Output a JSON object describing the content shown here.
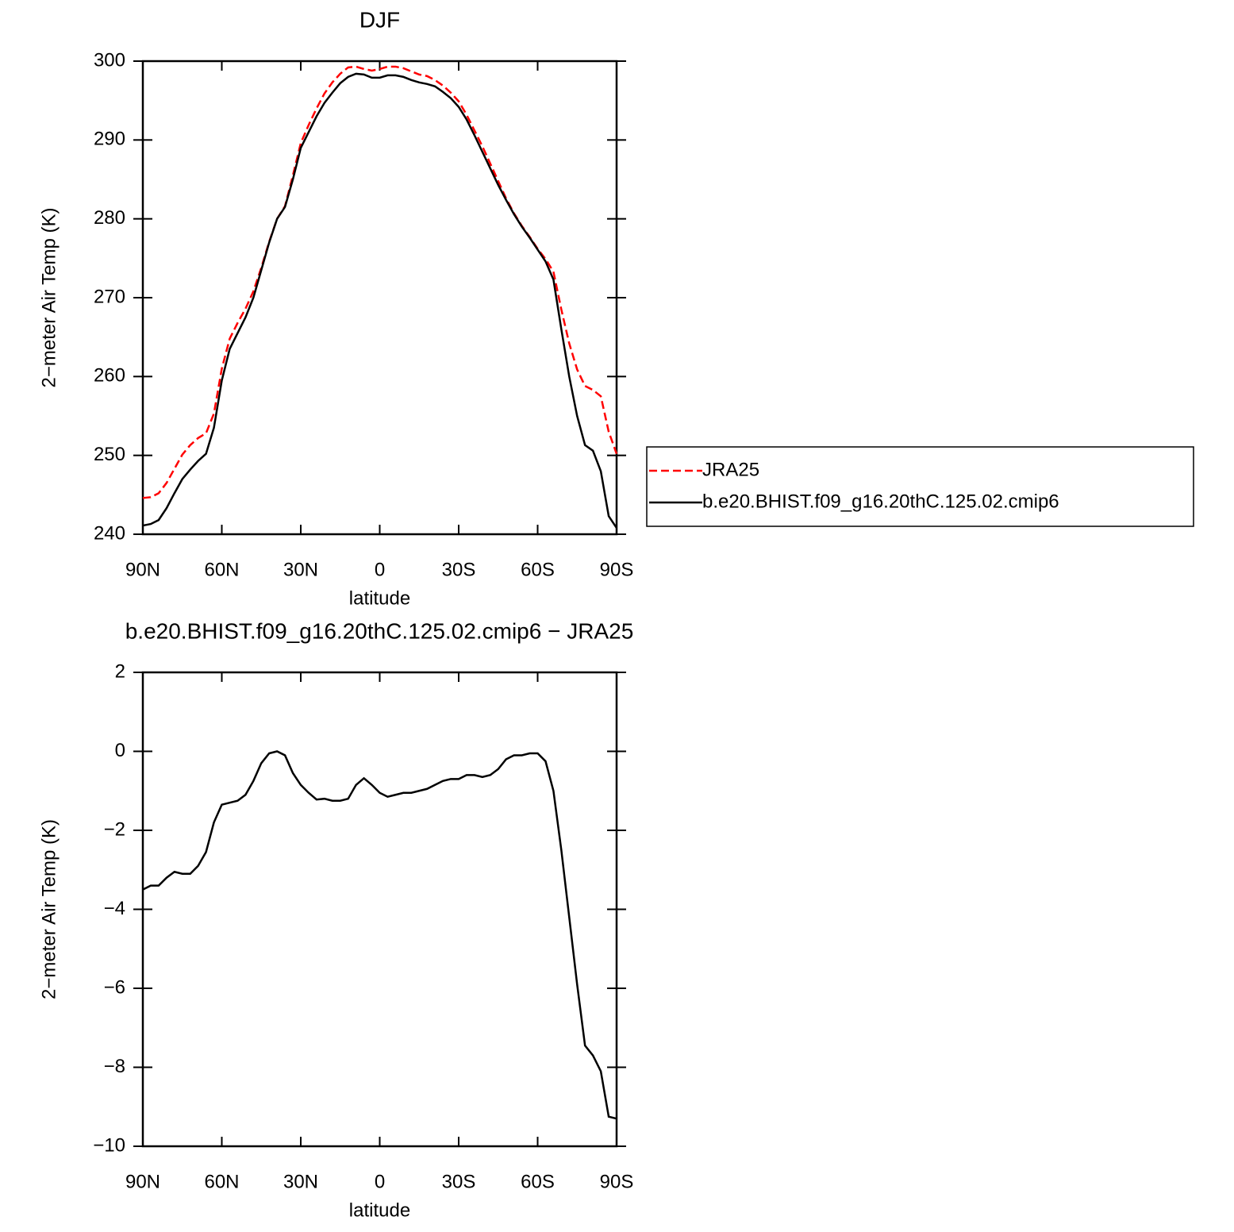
{
  "chart_data": [
    {
      "type": "line",
      "title": "DJF",
      "xlabel": "latitude",
      "ylabel": "2−meter Air Temp (K)",
      "x": [
        90,
        87,
        84,
        81,
        78,
        75,
        72,
        69,
        66,
        63,
        60,
        57,
        54,
        51,
        48,
        45,
        42,
        39,
        36,
        33,
        30,
        27,
        24,
        21,
        18,
        15,
        12,
        9,
        6,
        3,
        0,
        -3,
        -6,
        -9,
        -12,
        -15,
        -18,
        -21,
        -24,
        -27,
        -30,
        -33,
        -36,
        -39,
        -42,
        -45,
        -48,
        -51,
        -54,
        -57,
        -60,
        -63,
        -66,
        -69,
        -72,
        -75,
        -78,
        -81,
        -84,
        -87,
        -90
      ],
      "series": [
        {
          "name": "JRA25",
          "color": "#ff0000",
          "line_style": "dashed",
          "values": [
            244.6,
            244.7,
            245.2,
            246.5,
            248.3,
            250.1,
            251.3,
            252.2,
            252.8,
            255.3,
            261.0,
            264.8,
            266.8,
            268.6,
            270.8,
            273.8,
            277.1,
            280.0,
            281.6,
            285.5,
            289.6,
            291.9,
            294.0,
            295.9,
            297.3,
            298.4,
            299.2,
            299.3,
            299.0,
            298.8,
            299.0,
            299.3,
            299.3,
            299.1,
            298.7,
            298.3,
            298.1,
            297.6,
            296.9,
            296.0,
            294.9,
            293.2,
            291.2,
            289.2,
            287.0,
            284.8,
            282.6,
            280.7,
            279.1,
            277.7,
            276.2,
            274.9,
            273.3,
            268.5,
            264.2,
            260.9,
            258.8,
            258.3,
            257.5,
            253.0,
            250.2
          ]
        },
        {
          "name": "b.e20.BHIST.f09_g16.20thC.125.02.cmip6",
          "color": "#000000",
          "line_style": "solid",
          "values": [
            241.1,
            241.3,
            241.8,
            243.3,
            245.2,
            247.0,
            248.2,
            249.3,
            250.2,
            253.5,
            259.5,
            263.5,
            265.5,
            267.5,
            270.0,
            273.5,
            277.0,
            280.0,
            281.5,
            285.0,
            289.0,
            291.0,
            293.0,
            294.7,
            296.0,
            297.2,
            298.0,
            298.4,
            298.3,
            297.9,
            297.9,
            298.2,
            298.2,
            298.0,
            297.6,
            297.3,
            297.1,
            296.8,
            296.1,
            295.3,
            294.2,
            292.6,
            290.6,
            288.5,
            286.4,
            284.3,
            282.4,
            280.6,
            279.0,
            277.6,
            276.1,
            274.6,
            272.3,
            266.0,
            260.0,
            255.0,
            251.3,
            250.6,
            248.0,
            242.3,
            240.8
          ]
        }
      ],
      "xlim": [
        90,
        -90
      ],
      "xticks": [
        {
          "value": 90,
          "label": "90N"
        },
        {
          "value": 60,
          "label": "60N"
        },
        {
          "value": 30,
          "label": "30N"
        },
        0,
        {
          "value": -30,
          "label": "30S"
        },
        {
          "value": -60,
          "label": "60S"
        },
        {
          "value": -90,
          "label": "90S"
        }
      ],
      "ylim": [
        240,
        300
      ],
      "yticks": [
        240,
        250,
        260,
        270,
        280,
        290,
        300
      ],
      "legend": "right-outside",
      "grid": false
    },
    {
      "type": "line",
      "title": "b.e20.BHIST.f09_g16.20thC.125.02.cmip6 − JRA25",
      "xlabel": "latitude",
      "ylabel": "2−meter Air Temp (K)",
      "x": [
        90,
        87,
        84,
        81,
        78,
        75,
        72,
        69,
        66,
        63,
        60,
        57,
        54,
        51,
        48,
        45,
        42,
        39,
        36,
        33,
        30,
        27,
        24,
        21,
        18,
        15,
        12,
        9,
        6,
        3,
        0,
        -3,
        -6,
        -9,
        -12,
        -15,
        -18,
        -21,
        -24,
        -27,
        -30,
        -33,
        -36,
        -39,
        -42,
        -45,
        -48,
        -51,
        -54,
        -57,
        -60,
        -63,
        -66,
        -69,
        -72,
        -75,
        -78,
        -81,
        -84,
        -87,
        -90
      ],
      "series": [
        {
          "color": "#000000",
          "line_style": "solid",
          "values": [
            -3.5,
            -3.4,
            -3.4,
            -3.2,
            -3.05,
            -3.1,
            -3.1,
            -2.9,
            -2.55,
            -1.8,
            -1.35,
            -1.3,
            -1.25,
            -1.1,
            -0.75,
            -0.3,
            -0.05,
            0.0,
            -0.1,
            -0.55,
            -0.85,
            -1.05,
            -1.22,
            -1.2,
            -1.25,
            -1.25,
            -1.2,
            -0.85,
            -0.68,
            -0.85,
            -1.05,
            -1.15,
            -1.1,
            -1.05,
            -1.05,
            -1.0,
            -0.95,
            -0.85,
            -0.75,
            -0.7,
            -0.7,
            -0.6,
            -0.6,
            -0.65,
            -0.6,
            -0.45,
            -0.2,
            -0.1,
            -0.1,
            -0.05,
            -0.05,
            -0.25,
            -1.0,
            -2.5,
            -4.2,
            -5.9,
            -7.45,
            -7.7,
            -8.1,
            -9.25,
            -9.3
          ]
        }
      ],
      "xlim": [
        90,
        -90
      ],
      "xticks": [
        {
          "value": 90,
          "label": "90N"
        },
        {
          "value": 60,
          "label": "60N"
        },
        {
          "value": 30,
          "label": "30N"
        },
        0,
        {
          "value": -30,
          "label": "30S"
        },
        {
          "value": -60,
          "label": "60S"
        },
        {
          "value": -90,
          "label": "90S"
        }
      ],
      "ylim": [
        -10,
        2
      ],
      "yticks": [
        {
          "value": -10,
          "label": "−10"
        },
        {
          "value": -8,
          "label": "−8"
        },
        {
          "value": -6,
          "label": "−6"
        },
        {
          "value": -4,
          "label": "−4"
        },
        {
          "value": -2,
          "label": "−2"
        },
        0,
        2
      ],
      "grid": false
    }
  ]
}
